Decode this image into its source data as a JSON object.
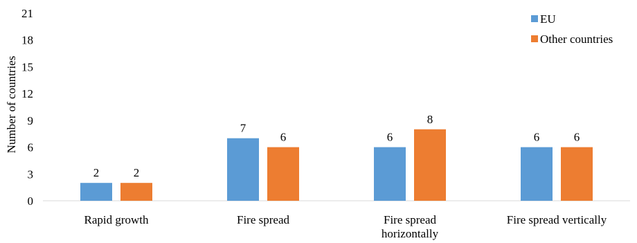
{
  "chart_data": {
    "type": "bar",
    "categories": [
      [
        "Rapid growth"
      ],
      [
        "Fire spread"
      ],
      [
        "Fire spread",
        "horizontally"
      ],
      [
        "Fire spread vertically"
      ]
    ],
    "series": [
      {
        "name": "EU",
        "values": [
          2,
          7,
          6,
          6
        ],
        "color": "#5B9BD5"
      },
      {
        "name": "Other countries",
        "values": [
          2,
          6,
          8,
          6
        ],
        "color": "#ED7D31"
      }
    ],
    "ylabel": "Number of countries",
    "ylim": [
      0,
      21
    ],
    "yticks": [
      0,
      3,
      6,
      9,
      12,
      15,
      18,
      21
    ],
    "grid": false,
    "legend_position": "top-right"
  }
}
